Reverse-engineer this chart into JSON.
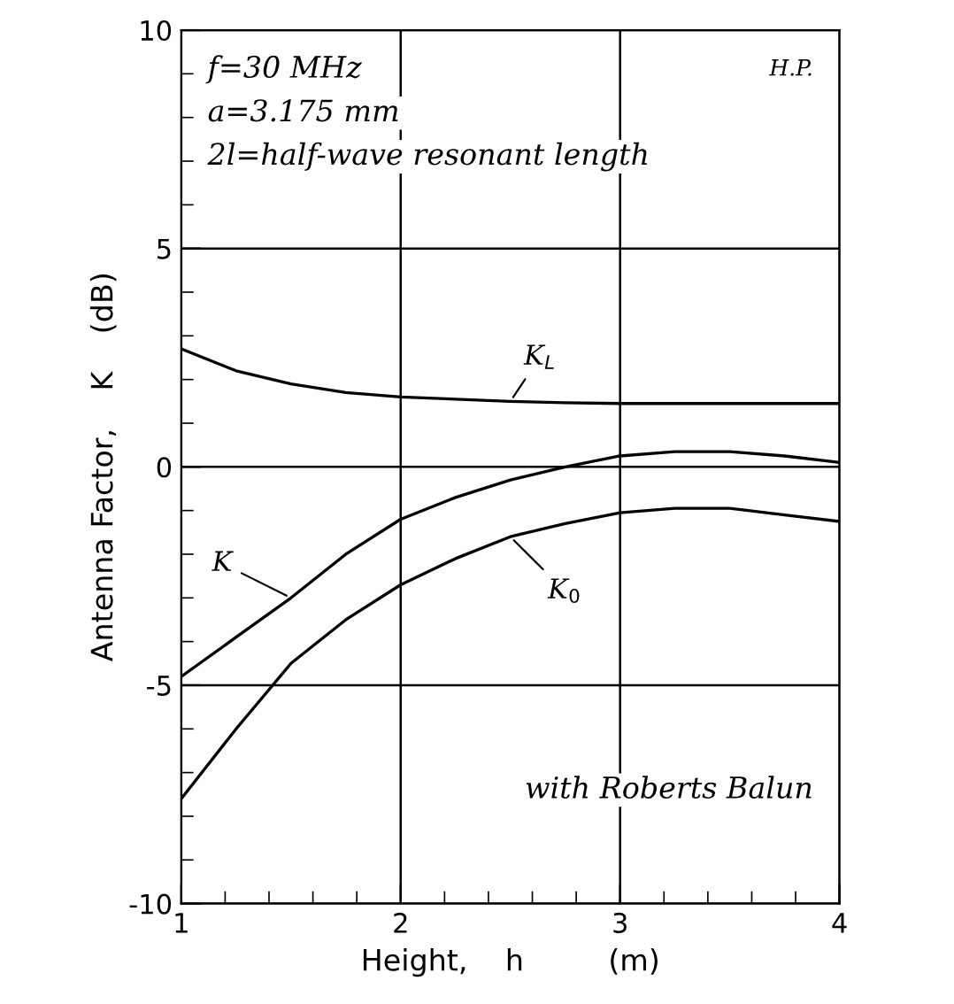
{
  "chart_data": {
    "type": "line",
    "xlabel": "Height,    h         (m)",
    "ylabel": "Antenna Factor,    K    (dB)",
    "x": [
      1,
      1.25,
      1.5,
      1.75,
      2,
      2.25,
      2.5,
      2.75,
      3,
      3.25,
      3.5,
      3.75,
      4
    ],
    "series": [
      {
        "name": "K$_{L}$",
        "color": "#000000",
        "values": [
          2.7,
          2.2,
          1.9,
          1.7,
          1.6,
          1.55,
          1.5,
          1.47,
          1.45,
          1.45,
          1.45,
          1.45,
          1.45
        ]
      },
      {
        "name": "K",
        "color": "#000000",
        "values": [
          -4.8,
          -3.9,
          -3.0,
          -2.0,
          -1.2,
          -0.7,
          -0.3,
          0.0,
          0.25,
          0.35,
          0.35,
          0.25,
          0.1
        ]
      },
      {
        "name": "K$_{0}$",
        "color": "#000000",
        "values": [
          -7.6,
          -6.0,
          -4.5,
          -3.5,
          -2.7,
          -2.1,
          -1.6,
          -1.3,
          -1.05,
          -0.95,
          -0.95,
          -1.1,
          -1.25
        ]
      }
    ],
    "xlim": [
      1,
      4
    ],
    "xticks": [
      1,
      2,
      3,
      4
    ],
    "ylim": [
      -10,
      10
    ],
    "yticks": [
      -10,
      -5,
      0,
      5,
      10
    ],
    "grid": true,
    "marker": "none",
    "line_style": "solid",
    "annotations": [
      "f=30 MHz",
      "a=3.175 mm",
      "2l=half-wave resonant length",
      "H.P.",
      "with Roberts Balun"
    ]
  }
}
